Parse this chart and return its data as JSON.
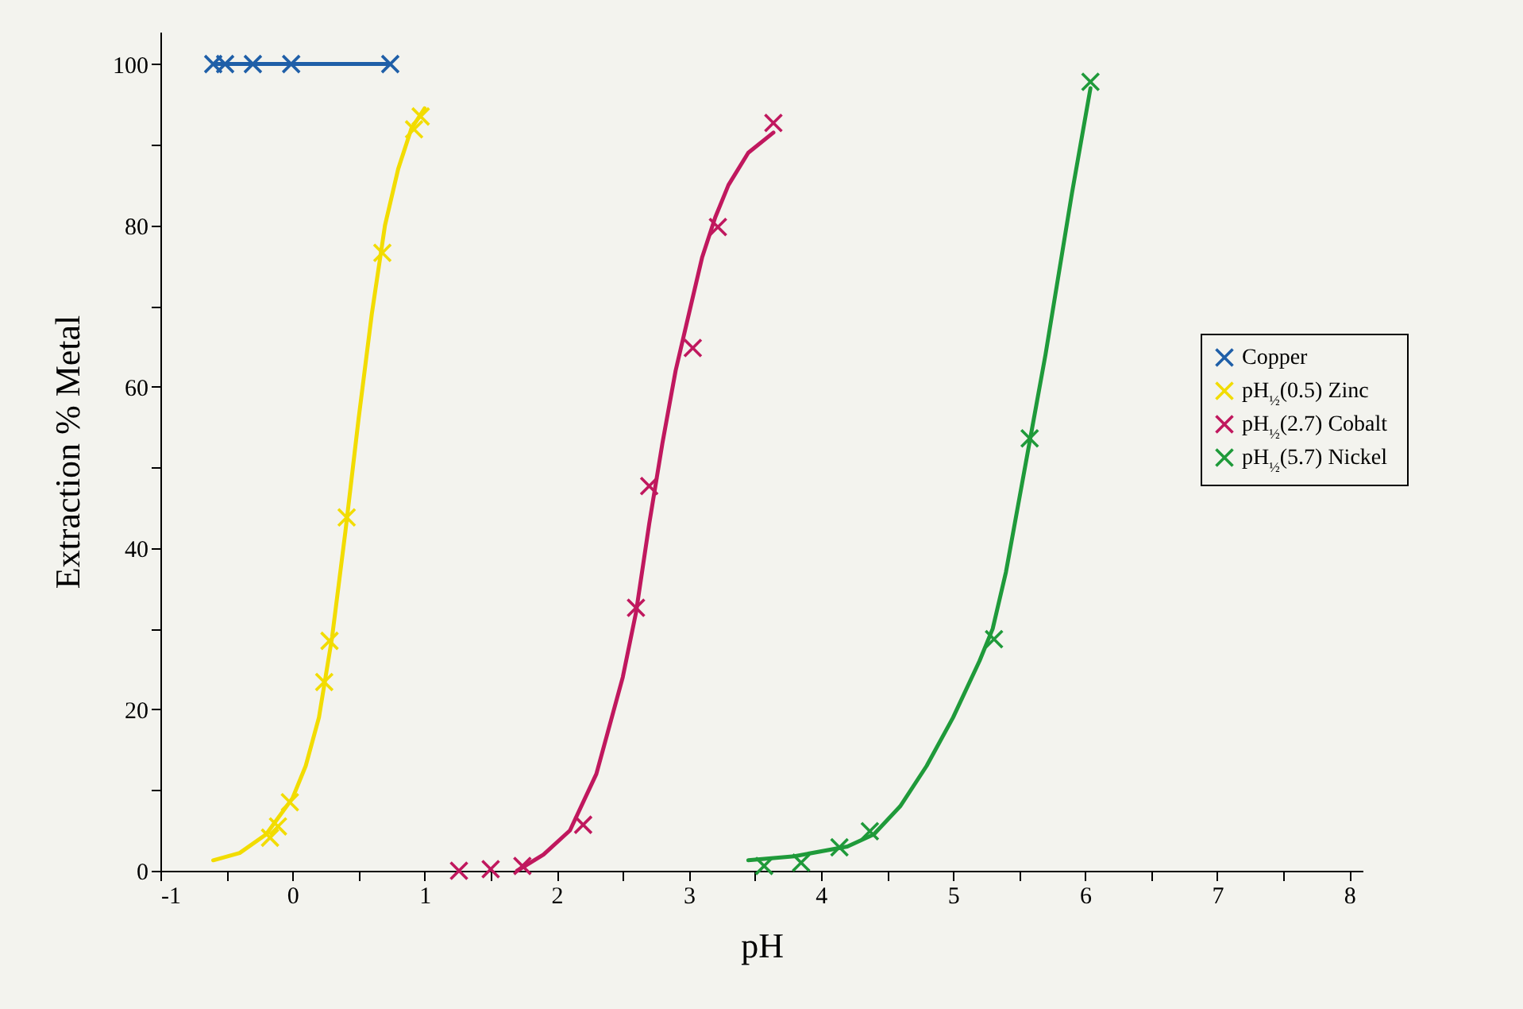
{
  "chart_data": {
    "type": "scatter",
    "xlabel": "pH",
    "ylabel": "Extraction % Metal",
    "xlim": [
      -1,
      8.1
    ],
    "ylim": [
      0,
      104
    ],
    "xticks": [
      -1,
      {
        "value": -0.5,
        "label": null
      },
      0,
      {
        "value": 0.5,
        "label": null
      },
      1,
      {
        "value": 1.5,
        "label": null
      },
      2,
      {
        "value": 2.5,
        "label": null
      },
      3,
      {
        "value": 3.5,
        "label": null
      },
      4,
      {
        "value": 4.5,
        "label": null
      },
      5,
      {
        "value": 5.5,
        "label": null
      },
      6,
      {
        "value": 6.5,
        "label": null
      },
      7,
      {
        "value": 7.5,
        "label": null
      },
      8
    ],
    "yticks": [
      0,
      {
        "value": 10,
        "label": null
      },
      20,
      {
        "value": 30,
        "label": null
      },
      40,
      {
        "value": 50,
        "label": null
      },
      60,
      {
        "value": 70,
        "label": null
      },
      80,
      {
        "value": 90,
        "label": null
      },
      100
    ],
    "grid": false,
    "legend": "right",
    "marker": "cross",
    "series": [
      {
        "name": "Copper",
        "type": "line",
        "color": "#1f5fa8",
        "x": [
          -0.6,
          -0.51,
          -0.3,
          -0.01,
          0.74
        ],
        "values": [
          100,
          100,
          100,
          100,
          100
        ]
      },
      {
        "name": "pH$_{½}$(0.5) Zinc",
        "type": "scatter",
        "color": "#f2dc00",
        "x": [
          -0.17,
          -0.11,
          -0.02,
          0.24,
          0.28,
          0.41,
          0.68,
          0.92,
          0.97
        ],
        "values": [
          4.1,
          5.5,
          8.5,
          23.4,
          28.5,
          43.8,
          76.6,
          91.9,
          93.5
        ]
      },
      {
        "name": "pH$_{½}$(2.7) Cobalt",
        "type": "scatter",
        "color": "#c0185e",
        "x": [
          1.26,
          1.5,
          1.74,
          2.2,
          2.6,
          2.7,
          3.03,
          3.22,
          3.64
        ],
        "values": [
          0,
          0.2,
          0.6,
          5.7,
          32.6,
          47.7,
          64.8,
          79.8,
          92.7
        ]
      },
      {
        "name": "pH$_{½}$(5.7) Nickel",
        "type": "scatter",
        "color": "#1f9a3a",
        "x": [
          3.57,
          3.85,
          4.14,
          4.37,
          5.31,
          5.58,
          6.04
        ],
        "values": [
          0.6,
          1,
          2.9,
          4.9,
          28.7,
          53.6,
          97.8
        ]
      },
      {
        "type": "line",
        "marker": "none",
        "color": "#f2dc00",
        "x": [
          -0.6,
          -0.4,
          -0.2,
          0,
          0.1,
          0.2,
          0.3,
          0.4,
          0.5,
          0.6,
          0.7,
          0.8,
          0.9,
          1.0
        ],
        "values": [
          1.3,
          2.2,
          4.5,
          9,
          13,
          19,
          29,
          42,
          56,
          69,
          80,
          87,
          92,
          94.5
        ]
      },
      {
        "type": "line",
        "marker": "none",
        "color": "#c0185e",
        "x": [
          1.7,
          1.9,
          2.1,
          2.3,
          2.5,
          2.6,
          2.7,
          2.8,
          2.9,
          3.0,
          3.1,
          3.2,
          3.3,
          3.45,
          3.64
        ],
        "values": [
          0,
          2,
          5,
          12,
          24,
          32,
          43,
          53,
          62,
          69,
          76,
          81,
          85,
          89,
          91.5
        ]
      },
      {
        "type": "line",
        "marker": "none",
        "color": "#1f9a3a",
        "x": [
          3.45,
          3.8,
          4.2,
          4.4,
          4.6,
          4.8,
          5.0,
          5.2,
          5.3,
          5.4,
          5.5,
          5.6,
          5.7,
          5.8,
          5.9,
          6.04
        ],
        "values": [
          1.3,
          1.8,
          3,
          4.5,
          8,
          13,
          19,
          26,
          30,
          37,
          46,
          55,
          64,
          74,
          84,
          97
        ]
      }
    ]
  }
}
